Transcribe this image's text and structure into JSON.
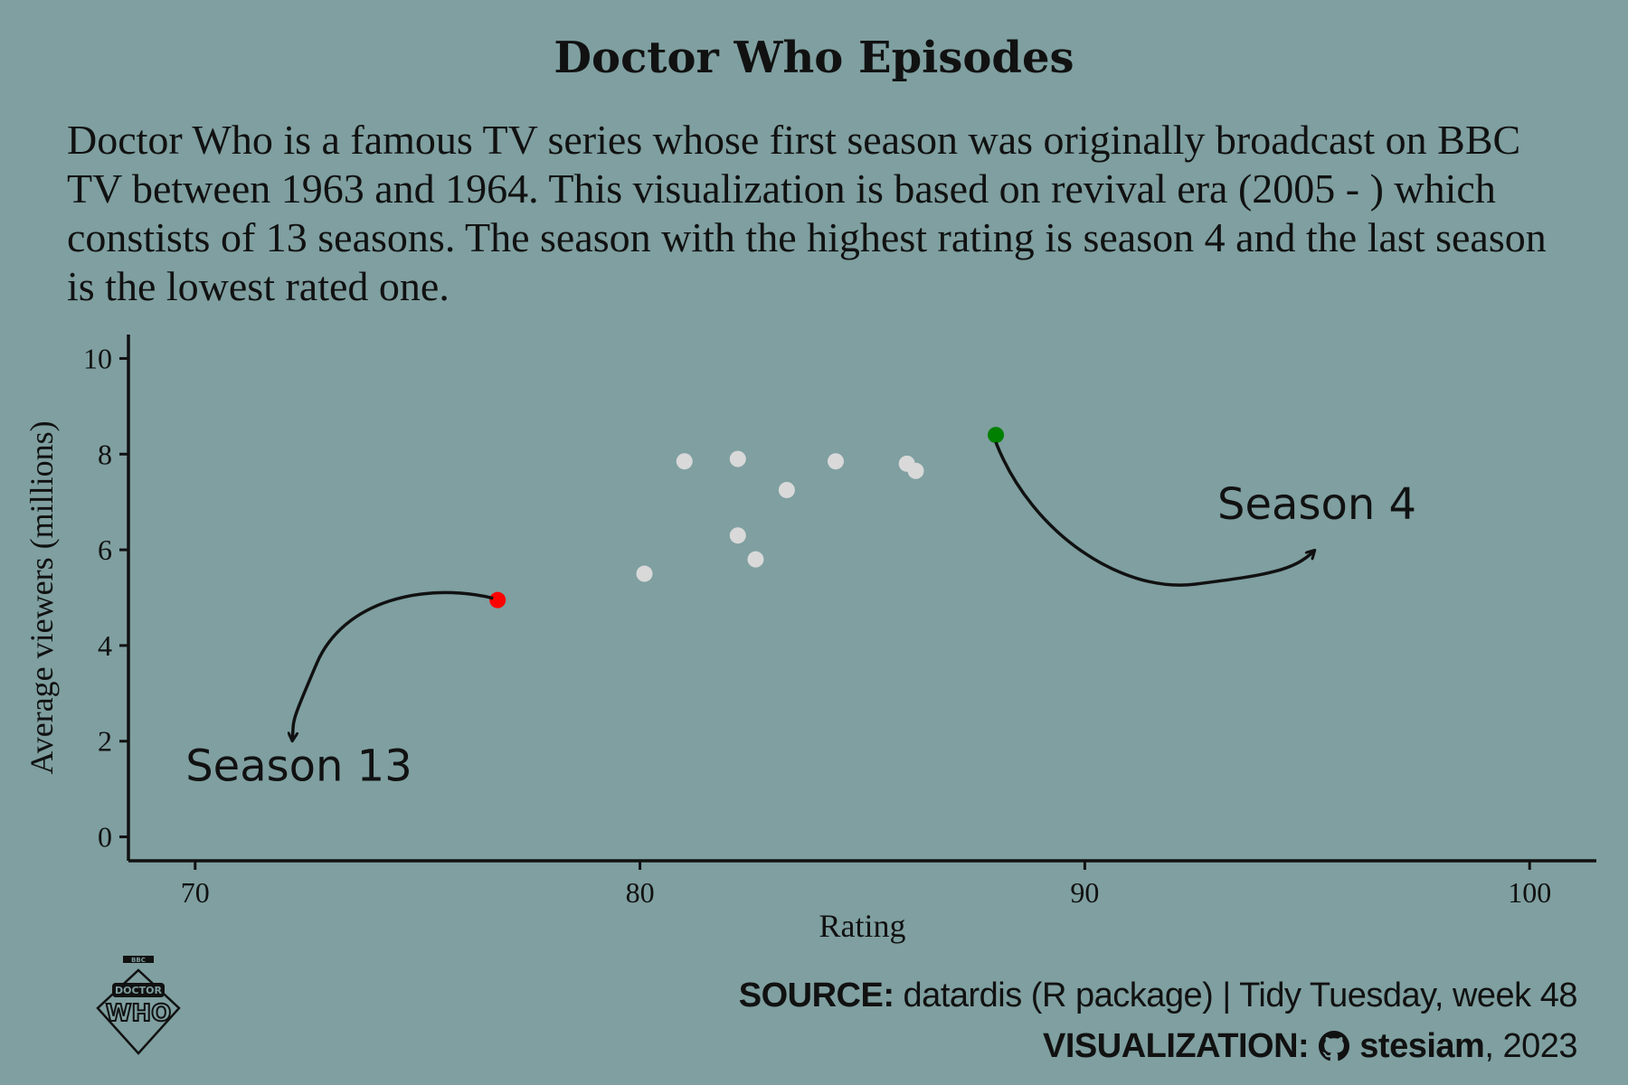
{
  "title": "Doctor Who Episodes",
  "subtitle": "Doctor Who is a famous TV series whose first season was originally broadcast on BBC TV between 1963 and 1964. This visualization is based on revival era (2005 - ) which constists of 13 seasons. The season with the highest rating is season 4 and the last season is the lowest rated one.",
  "caption": {
    "source_label": "SOURCE:",
    "source_text": "datardis (R package) | Tidy Tuesday, week 48",
    "viz_label": "VISUALIZATION:",
    "viz_author": "stesiam",
    "viz_year": ", 2023"
  },
  "logo": {
    "top_text": "BBC",
    "word1": "DOCTOR",
    "word2": "WHO"
  },
  "colors": {
    "background": "#7f9fa0",
    "point_default": "#d9d9d9",
    "point_highest": "#008000",
    "point_lowest": "#ff0000",
    "axis": "#111111"
  },
  "chart_data": {
    "type": "scatter",
    "xlabel": "Rating",
    "ylabel": "Average viewers (millions)",
    "xlim": [
      68.5,
      101.5
    ],
    "ylim": [
      -0.5,
      10.5
    ],
    "xticks": [
      70,
      80,
      90,
      100
    ],
    "yticks": [
      0,
      2,
      4,
      6,
      8,
      10
    ],
    "grid": false,
    "points": [
      {
        "x": 76.8,
        "y": 4.95,
        "highlight": "lowest"
      },
      {
        "x": 80.1,
        "y": 5.5
      },
      {
        "x": 81.0,
        "y": 7.85
      },
      {
        "x": 82.2,
        "y": 7.9
      },
      {
        "x": 82.2,
        "y": 6.3
      },
      {
        "x": 82.6,
        "y": 5.8
      },
      {
        "x": 83.3,
        "y": 7.25
      },
      {
        "x": 84.4,
        "y": 7.85
      },
      {
        "x": 86.0,
        "y": 7.8
      },
      {
        "x": 86.2,
        "y": 7.65
      },
      {
        "x": 88.0,
        "y": 8.4,
        "highlight": "highest"
      }
    ],
    "annotations": [
      {
        "label": "Season 4",
        "target": "highest"
      },
      {
        "label": "Season 13",
        "target": "lowest"
      }
    ]
  }
}
